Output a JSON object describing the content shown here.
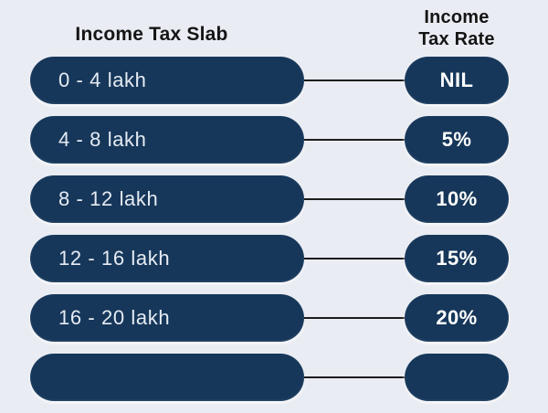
{
  "header": {
    "left": "Income Tax Slab",
    "right_line1": "Income",
    "right_line2": "Tax Rate"
  },
  "rows": [
    {
      "slab": "0 - 4 lakh",
      "rate": "NIL",
      "partial": false
    },
    {
      "slab": "4 - 8 lakh",
      "rate": "5%",
      "partial": false
    },
    {
      "slab": "8 - 12 lakh",
      "rate": "10%",
      "partial": false
    },
    {
      "slab": "12 - 16 lakh",
      "rate": "15%",
      "partial": false
    },
    {
      "slab": "16 - 20 lakh",
      "rate": "20%",
      "partial": false
    },
    {
      "slab": "",
      "rate": "",
      "partial": true
    }
  ],
  "chart_data": {
    "type": "table",
    "columns": [
      "Income Tax Slab",
      "Income Tax Rate"
    ],
    "rows": [
      [
        "0 - 4 lakh",
        "NIL"
      ],
      [
        "4 - 8 lakh",
        "5%"
      ],
      [
        "8 - 12 lakh",
        "10%"
      ],
      [
        "12 - 16 lakh",
        "15%"
      ],
      [
        "16 - 20 lakh",
        "20%"
      ]
    ],
    "note_visible_layout": "sixth row pills partially visible at bottom edge, text cut off"
  },
  "colors": {
    "background": "#e9ecf3",
    "pill": "#16375a",
    "slab_text": "#e6ebf3",
    "rate_text": "#ffffff",
    "header_text": "#151515",
    "connector": "#1c1c1c"
  }
}
